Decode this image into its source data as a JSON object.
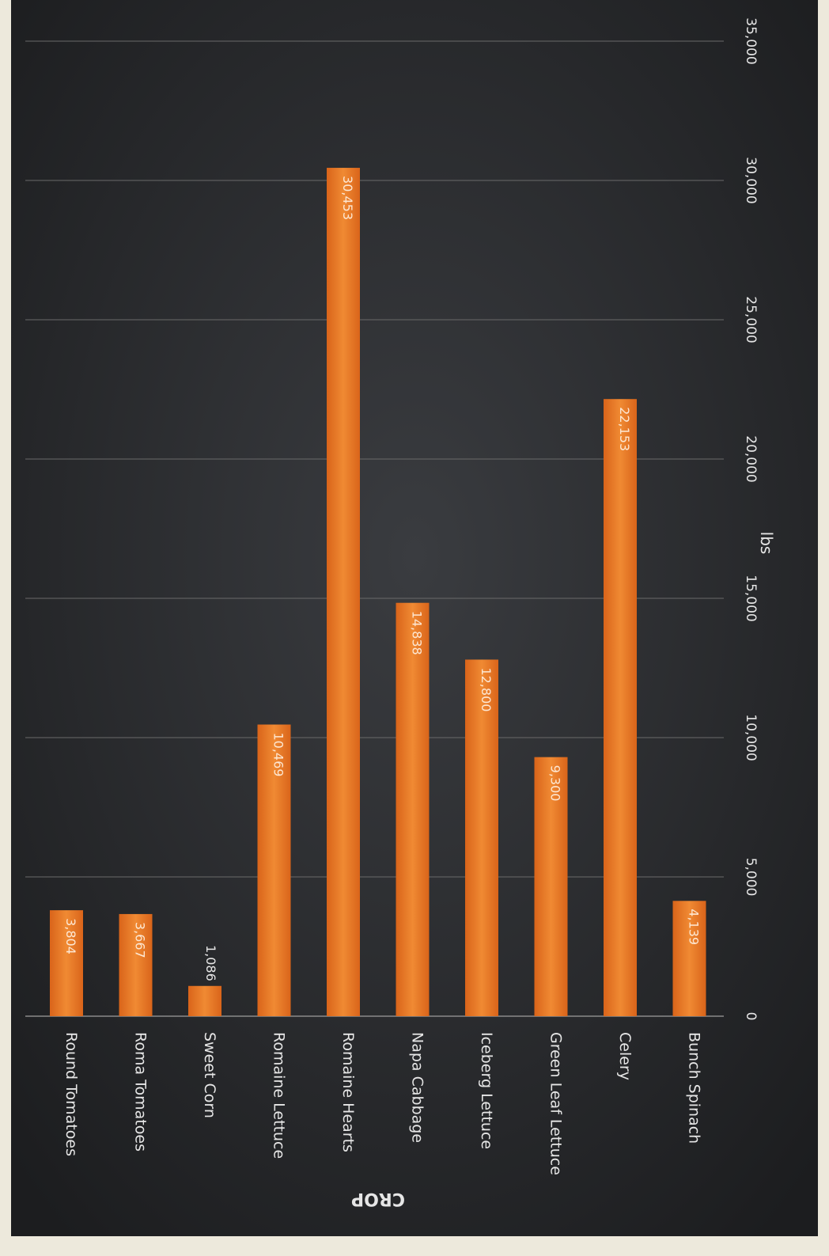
{
  "chart_data": {
    "type": "bar",
    "orientation": "vertical-bars-rotated-page",
    "title": "",
    "xlabel": "CROP",
    "ylabel": "lbs",
    "ylim": [
      0,
      35000
    ],
    "yticks": [
      0,
      5000,
      10000,
      15000,
      20000,
      25000,
      30000,
      35000
    ],
    "ytick_labels": [
      "0",
      "5,000",
      "10,000",
      "15,000",
      "20,000",
      "25,000",
      "30,000",
      "35,000"
    ],
    "grid": true,
    "legend": "none",
    "categories": [
      "Round Tomatoes",
      "Roma Tomatoes",
      "Sweet Corn",
      "Romaine Lettuce",
      "Romaine Hearts",
      "Napa Cabbage",
      "Iceberg Lettuce",
      "Green Leaf Lettuce",
      "Celery",
      "Bunch Spinach"
    ],
    "values": [
      3804,
      3667,
      1086,
      10469,
      30453,
      14838,
      12800,
      9300,
      22153,
      4139
    ],
    "value_labels": [
      "3,804",
      "3,667",
      "1,086",
      "10,469",
      "30,453",
      "14,838",
      "12,800",
      "9,300",
      "22,153",
      "4,139"
    ],
    "colors": {
      "bar": "#ec7a23",
      "background": "#26282b",
      "grid": "#6a6a6a",
      "text": "#e6e6e6",
      "label_inside": "#fde7d2",
      "page": "#ede9dc"
    }
  }
}
